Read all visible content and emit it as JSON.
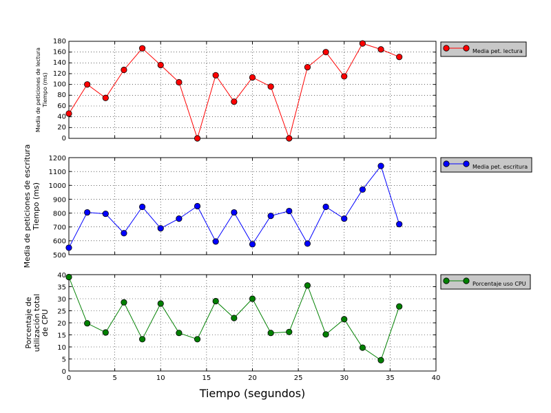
{
  "chart_data": [
    {
      "type": "line",
      "xlabel": "",
      "ylabel_lines": [
        "Media de peticiones de lectura",
        "Tiempo (ms)"
      ],
      "xlim": [
        0,
        40
      ],
      "ylim": [
        0,
        180
      ],
      "yticks": [
        0,
        20,
        40,
        60,
        80,
        100,
        120,
        140,
        160,
        180
      ],
      "xticks": [
        0,
        5,
        10,
        15,
        20,
        25,
        30,
        35,
        40
      ],
      "show_xtick_labels": false,
      "grid": true,
      "legend_position": "right-top, outside plot",
      "series": [
        {
          "name": "Media pet. lectura",
          "color": "#ff0000",
          "marker": "circle",
          "x": [
            0,
            2,
            4,
            6,
            8,
            10,
            12,
            14,
            16,
            18,
            20,
            22,
            24,
            26,
            28,
            30,
            32,
            34,
            36
          ],
          "values": [
            46,
            100,
            75,
            127,
            167,
            136,
            104,
            0,
            117,
            68,
            113,
            96,
            0,
            132,
            160,
            115,
            176,
            165,
            151
          ]
        }
      ]
    },
    {
      "type": "line",
      "xlabel": "",
      "ylabel_lines": [
        "Media de peticiones de escritura",
        "Tiempo (ms)"
      ],
      "xlim": [
        0,
        40
      ],
      "ylim": [
        500,
        1200
      ],
      "yticks": [
        500,
        600,
        700,
        800,
        900,
        1000,
        1100,
        1200
      ],
      "xticks": [
        0,
        5,
        10,
        15,
        20,
        25,
        30,
        35,
        40
      ],
      "show_xtick_labels": false,
      "grid": true,
      "legend_position": "right-top, outside plot",
      "series": [
        {
          "name": "Media pet. escritura",
          "color": "#0000ff",
          "marker": "circle",
          "x": [
            0,
            2,
            4,
            6,
            8,
            10,
            12,
            14,
            16,
            18,
            20,
            22,
            24,
            26,
            28,
            30,
            32,
            34,
            36
          ],
          "values": [
            550,
            805,
            795,
            655,
            845,
            690,
            760,
            850,
            595,
            805,
            575,
            780,
            815,
            580,
            845,
            760,
            970,
            1140,
            720
          ]
        }
      ]
    },
    {
      "type": "line",
      "xlabel": "Tiempo (segundos)",
      "ylabel_lines": [
        "Porcentaje de",
        "utilización total",
        "de CPU"
      ],
      "xlim": [
        0,
        40
      ],
      "ylim": [
        0,
        40
      ],
      "yticks": [
        0,
        5,
        10,
        15,
        20,
        25,
        30,
        35,
        40
      ],
      "xticks": [
        0,
        5,
        10,
        15,
        20,
        25,
        30,
        35,
        40
      ],
      "show_xtick_labels": true,
      "grid": true,
      "legend_position": "right-top, outside plot",
      "series": [
        {
          "name": "Porcentaje uso CPU",
          "color": "#008000",
          "marker": "circle",
          "x": [
            0,
            2,
            4,
            6,
            8,
            10,
            12,
            14,
            16,
            18,
            20,
            22,
            24,
            26,
            28,
            30,
            32,
            34,
            36
          ],
          "values": [
            39,
            19.8,
            16,
            28.5,
            13.2,
            28,
            15.8,
            13.2,
            29,
            22,
            30,
            15.8,
            16.2,
            35.5,
            15.2,
            21.5,
            9.7,
            4.5,
            26.8
          ]
        }
      ]
    }
  ]
}
